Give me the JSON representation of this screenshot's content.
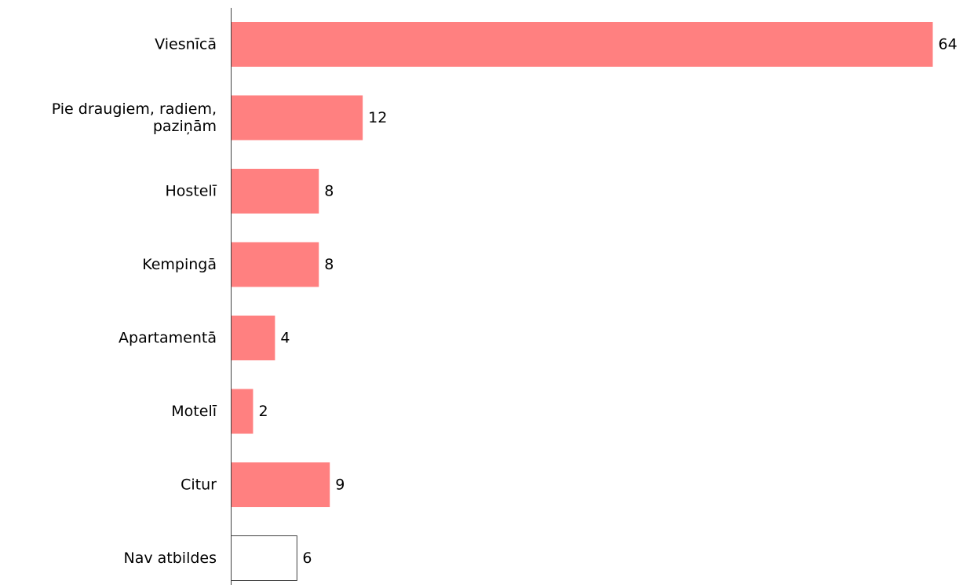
{
  "chart_data": {
    "type": "bar",
    "orientation": "horizontal",
    "title": "",
    "xlabel": "",
    "ylabel": "",
    "categories": [
      [
        "Viesnīcā"
      ],
      [
        "Pie draugiem, radiem,",
        "paziņām"
      ],
      [
        "Hostelī"
      ],
      [
        "Kempingā"
      ],
      [
        "Apartamentā"
      ],
      [
        "Motelī"
      ],
      [
        "Citur"
      ],
      [
        "Nav atbildes"
      ]
    ],
    "values": [
      64,
      12,
      8,
      8,
      4,
      2,
      9,
      6
    ],
    "data_labels": [
      "64",
      "12",
      "8",
      "8",
      "4",
      "2",
      "9",
      "6"
    ],
    "grid": false,
    "legend": "none",
    "colors": {
      "bar_fill": "#ff8080",
      "no_answer_fill": "#ffffff",
      "no_answer_stroke": "#404040",
      "axis": "#404040",
      "text": "#000000"
    }
  }
}
